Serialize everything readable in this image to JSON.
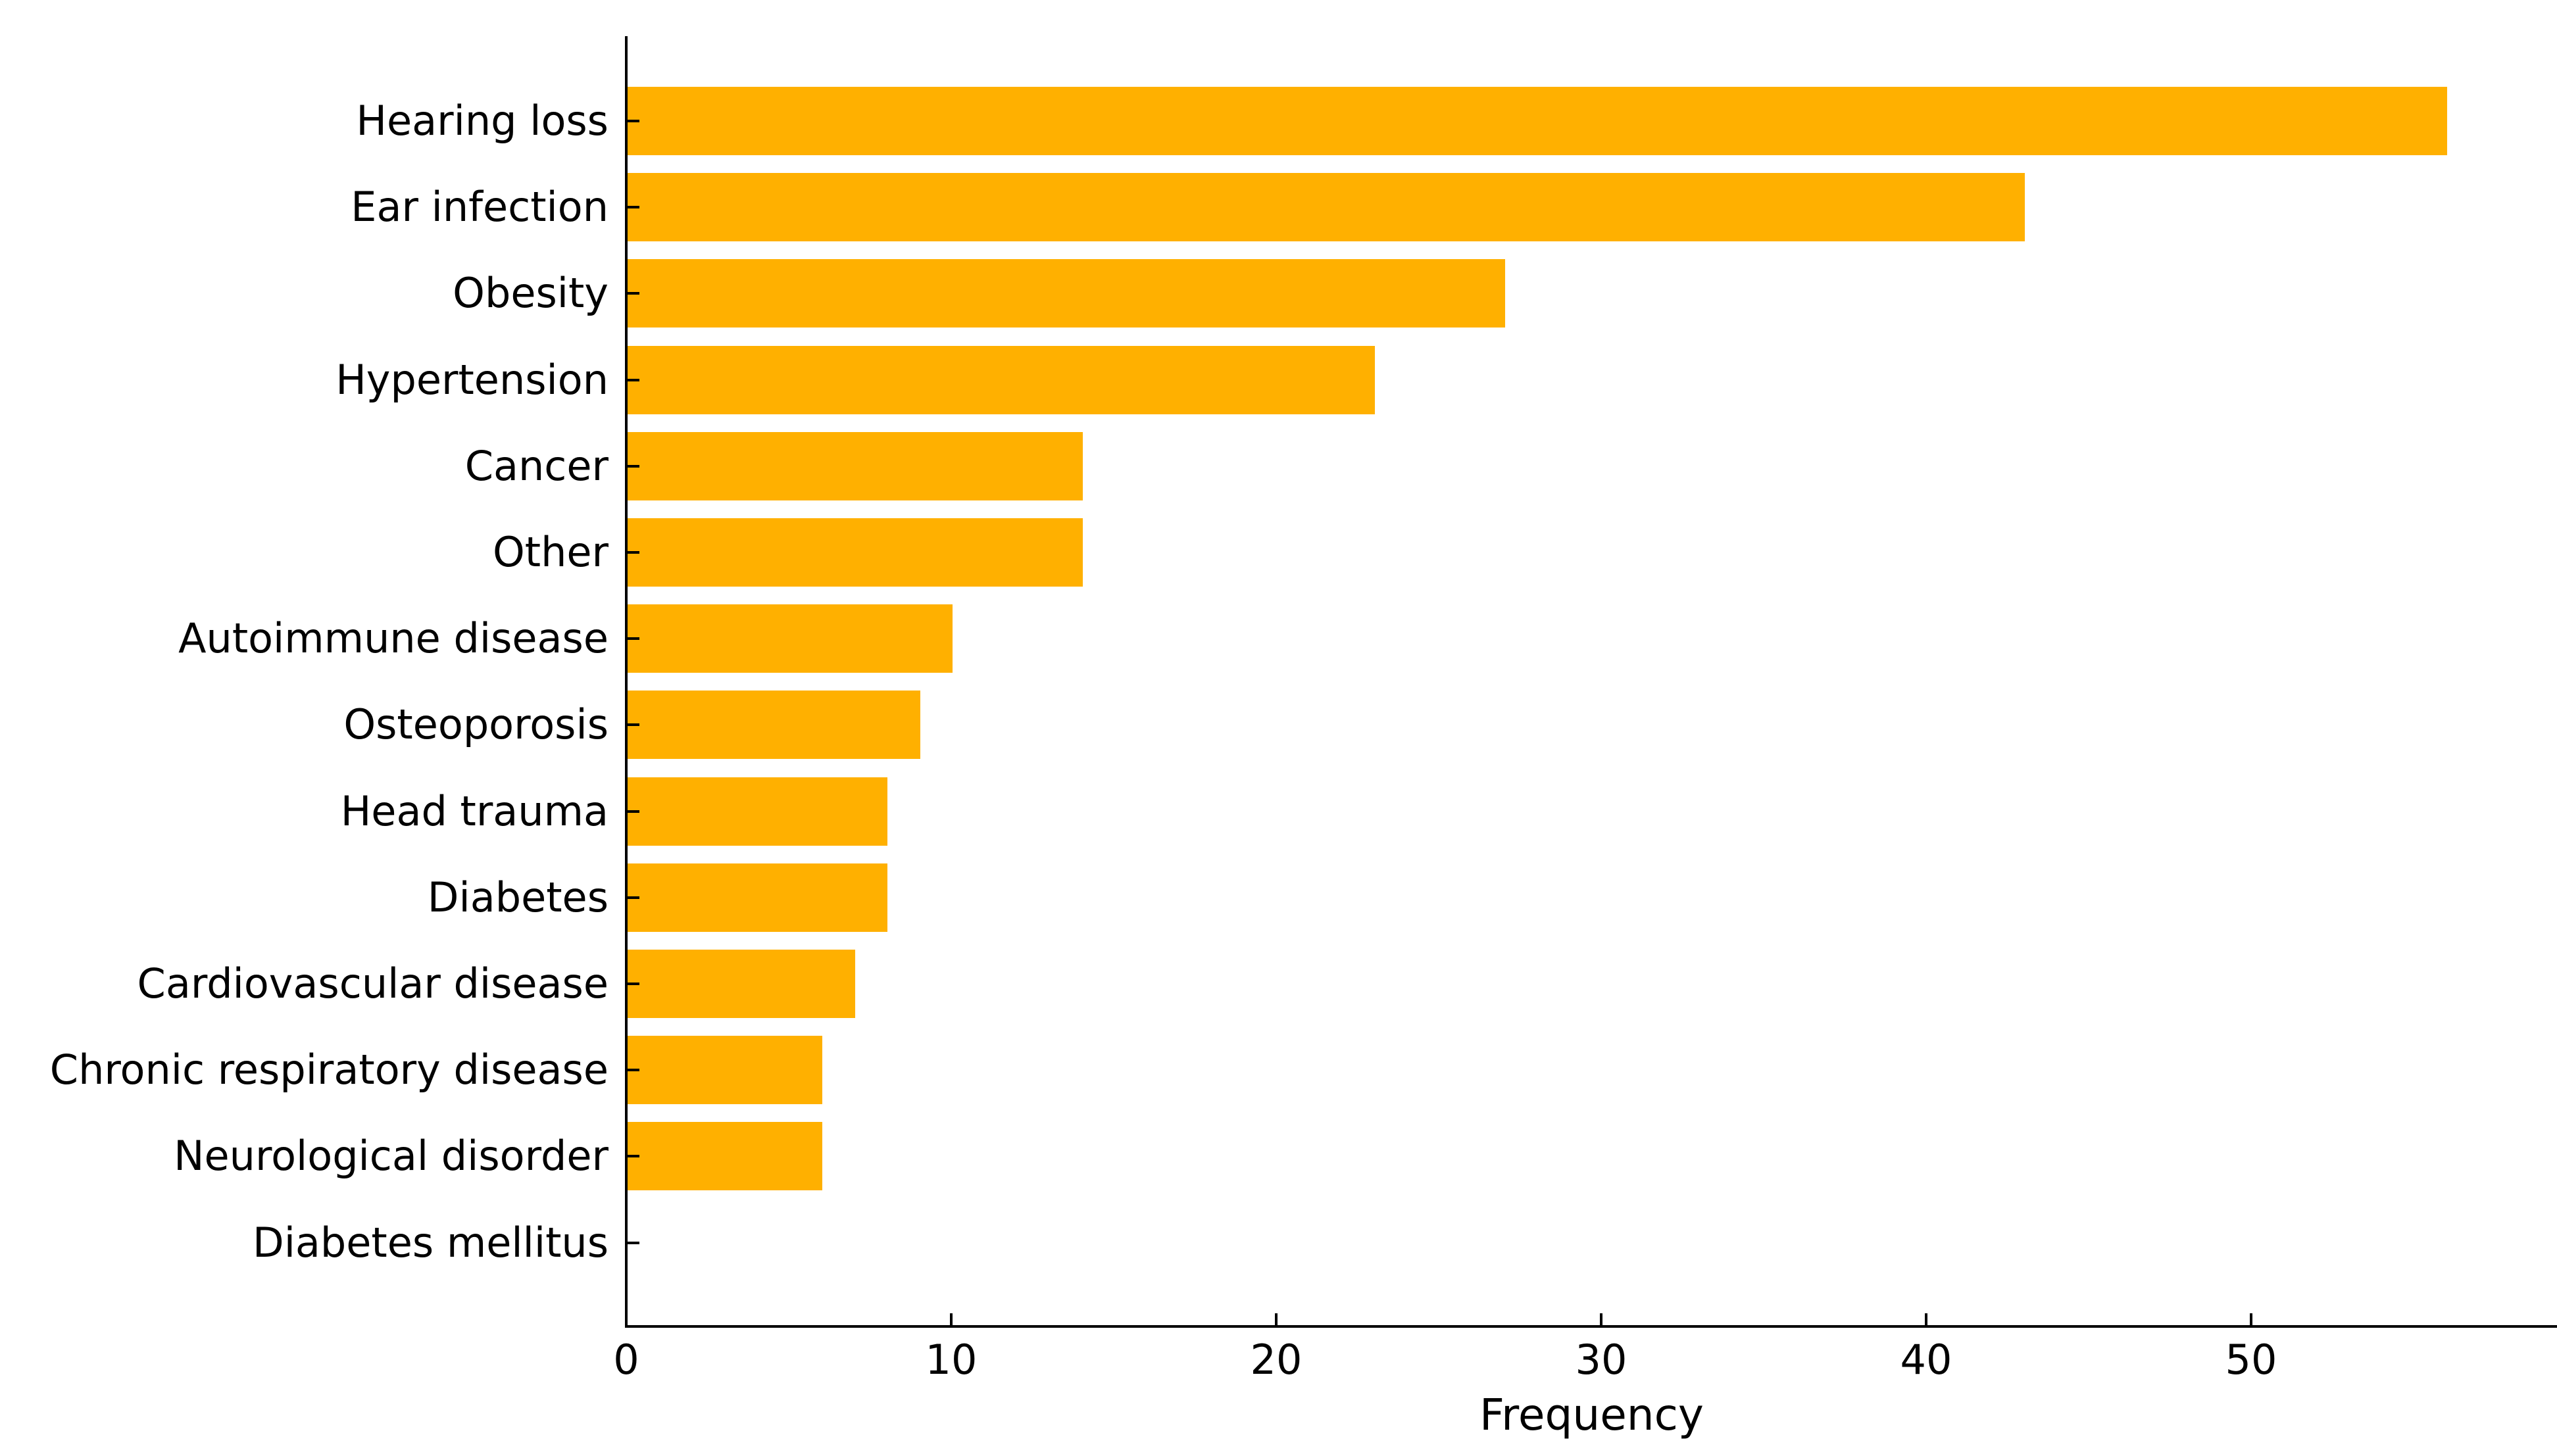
{
  "chart_data": {
    "type": "bar",
    "orientation": "horizontal",
    "title": "",
    "xlabel": "Frequency",
    "ylabel": "",
    "categories": [
      "Hearing loss",
      "Ear infection",
      "Obesity",
      "Hypertension",
      "Cancer",
      "Other",
      "Autoimmune disease",
      "Osteoporosis",
      "Head trauma",
      "Diabetes",
      "Cardiovascular disease",
      "Chronic respiratory disease",
      "Neurological disorder",
      "Diabetes mellitus"
    ],
    "values": [
      56,
      43,
      27,
      23,
      14,
      14,
      10,
      9,
      8,
      8,
      7,
      6,
      6,
      0
    ],
    "x_ticks": [
      0,
      10,
      20,
      30,
      40,
      50
    ],
    "xlim": [
      0,
      59.4
    ],
    "grid": false,
    "legend": null,
    "bar_color": "#ffb000",
    "axis_color": "#000000",
    "text_color": "#000000",
    "background_color": "#ffffff"
  }
}
